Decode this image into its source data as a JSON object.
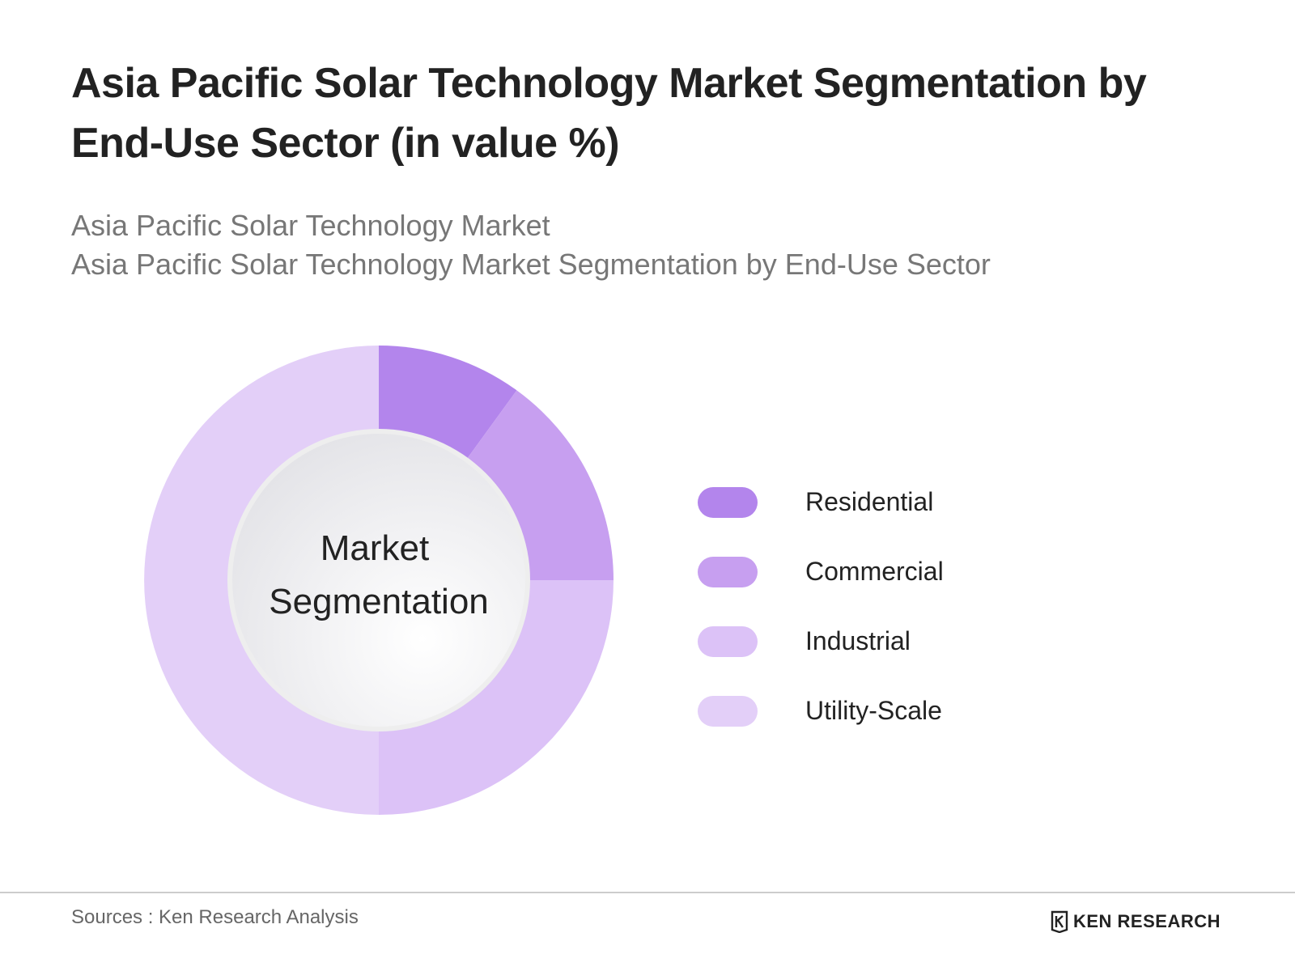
{
  "header": {
    "title": "Asia Pacific Solar Technology Market Segmentation by End-Use Sector (in value %)",
    "subtitle_1": "Asia Pacific Solar Technology Market",
    "subtitle_2": "Asia Pacific Solar Technology Market Segmentation by End-Use Sector"
  },
  "chart_data": {
    "type": "pie",
    "variant": "donut",
    "title": "Asia Pacific Solar Technology Market Segmentation by End-Use Sector (in value %)",
    "center_label_line1": "Market",
    "center_label_line2": "Segmentation",
    "categories": [
      "Residential",
      "Commercial",
      "Industrial",
      "Utility-Scale"
    ],
    "values": [
      10,
      15,
      25,
      50
    ],
    "colors": [
      "#b385ec",
      "#c79ff0",
      "#dcc2f7",
      "#e3cff8"
    ],
    "legend_position": "right"
  },
  "footer": {
    "source": "Sources : Ken Research Analysis",
    "brand": "KEN RESEARCH"
  },
  "colors": {
    "title": "#222222",
    "subtitle": "#777777",
    "rule": "#cccccc"
  }
}
